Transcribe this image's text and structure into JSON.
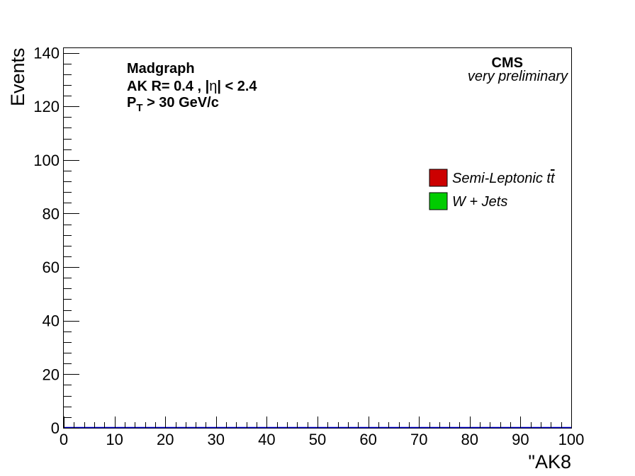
{
  "chart_data": {
    "type": "bar",
    "xlabel": "\"AK8",
    "ylabel": "Events",
    "xlim": [
      0,
      100
    ],
    "ylim": [
      0,
      142
    ],
    "x_major_ticks": [
      0,
      10,
      20,
      30,
      40,
      50,
      60,
      70,
      80,
      90,
      100
    ],
    "x_tick_labels": [
      "0",
      "10",
      "20",
      "30",
      "40",
      "50",
      "60",
      "70",
      "80",
      "90",
      "100"
    ],
    "y_major_ticks": [
      0,
      20,
      40,
      60,
      80,
      100,
      120,
      140
    ],
    "y_tick_labels": [
      "0",
      "20",
      "40",
      "60",
      "80",
      "100",
      "120",
      "140"
    ],
    "x_minor_step": 2,
    "y_minor_step": 4,
    "series": [
      {
        "name": "Semi-Leptonic tt̅",
        "color": "#cc0000",
        "values": []
      },
      {
        "name": "W + Jets",
        "color": "#00cc00",
        "values": []
      }
    ],
    "legend_position": "right",
    "grid": false
  },
  "annotations": {
    "generator": "Madgraph",
    "jet_line_prefix": "AK R= 0.4 , |",
    "jet_line_eta": "η",
    "jet_line_suffix": "| < 2.4",
    "pt_P": "P",
    "pt_sub": "T",
    "pt_rest": " > 30 GeV/c",
    "experiment": "CMS",
    "status": "very preliminary"
  },
  "legend": {
    "item1_main": "Semi-Leptonic ",
    "item1_top": "t",
    "item1_bar": "t",
    "item2": "W + Jets"
  }
}
